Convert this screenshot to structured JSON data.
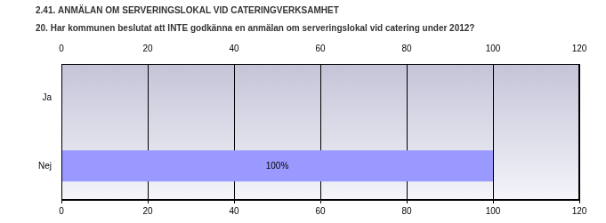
{
  "chart_data": {
    "type": "bar",
    "orientation": "horizontal",
    "title": "2.41. ANMÄLAN OM SERVERINGSLOKAL VID CATERINGVERKSAMHET",
    "subtitle": "20. Har kommunen beslutat att INTE godkänna en anmälan om serveringslokal vid catering under 2012?",
    "categories": [
      "Ja",
      "Nej"
    ],
    "values": [
      0,
      100
    ],
    "value_labels": [
      null,
      "100%"
    ],
    "data_labels": true,
    "color": "#9999ff",
    "xlim": [
      0,
      120
    ],
    "xticks": [
      0,
      20,
      40,
      60,
      80,
      100,
      120
    ],
    "grid": true
  }
}
